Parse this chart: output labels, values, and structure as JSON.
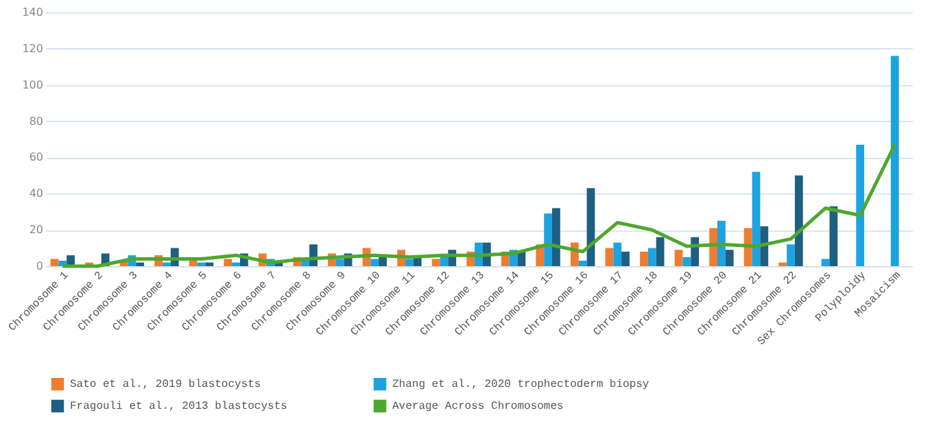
{
  "chart_data": {
    "type": "bar",
    "categories": [
      "Chromosome 1",
      "Chromosome 2",
      "Chromosome 3",
      "Chromosome 4",
      "Chromosome 5",
      "Chromosome 6",
      "Chromosome 7",
      "Chromosome 8",
      "Chromosome 9",
      "Chromosome 10",
      "Chromosome 11",
      "Chromosome 12",
      "Chromosome 13",
      "Chromosome 14",
      "Chromosome 15",
      "Chromosome 16",
      "Chromosome 17",
      "Chromosome 18",
      "Chromosome 19",
      "Chromosome 20",
      "Chromosome 21",
      "Chromosome 22",
      "Sex Chromosomes",
      "Polyploidy",
      "Mosaicism"
    ],
    "series": [
      {
        "name": "Sato et al., 2019 blastocysts",
        "color": "#ed7d31",
        "values": [
          4,
          2,
          3,
          6,
          4,
          4,
          7,
          5,
          7,
          10,
          9,
          4,
          8,
          8,
          12,
          13,
          10,
          8,
          9,
          21,
          21,
          2,
          null,
          null,
          null
        ]
      },
      {
        "name": "Zhang et al., 2020 trophectoderm biopsy",
        "color": "#1ca3e0",
        "values": [
          3,
          0,
          6,
          2,
          2,
          2,
          4,
          4,
          4,
          4,
          4,
          6,
          13,
          9,
          29,
          3,
          13,
          10,
          5,
          25,
          52,
          12,
          4,
          67,
          116
        ]
      },
      {
        "name": "Fragouli et al., 2013 blastocysts",
        "color": "#1f5f82",
        "values": [
          6,
          7,
          2,
          10,
          2,
          7,
          3,
          12,
          7,
          5,
          5,
          9,
          13,
          8,
          32,
          43,
          8,
          16,
          16,
          9,
          22,
          50,
          33,
          null,
          null
        ]
      },
      {
        "name": "Average Across Chromosomes",
        "type": "line",
        "color": "#4ea72e",
        "values": [
          0,
          0,
          4,
          4,
          4,
          6,
          2,
          4,
          5,
          6,
          5,
          6,
          6,
          7,
          12,
          8,
          24,
          20,
          11,
          12,
          11,
          15,
          32,
          28,
          67
        ]
      }
    ],
    "ylim": [
      0,
      140
    ],
    "yticks": [
      0,
      20,
      40,
      60,
      80,
      100,
      120,
      140
    ],
    "grid": "y",
    "legend": "bottom"
  }
}
